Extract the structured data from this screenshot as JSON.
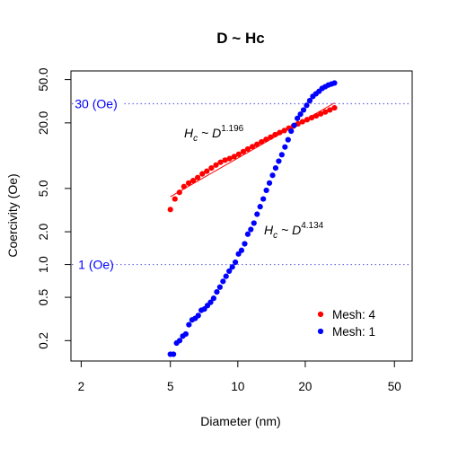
{
  "chart_data": {
    "type": "scatter",
    "title": "D ~ Hc",
    "xlabel": "Diameter (nm)",
    "ylabel": "Coercivity (Oe)",
    "x_scale": "log",
    "y_scale": "log",
    "xlim": [
      1.8,
      60
    ],
    "ylim": [
      0.13,
      60
    ],
    "x_ticks": [
      2,
      5,
      10,
      20,
      50
    ],
    "x_tick_labels": [
      "2",
      "5",
      "10",
      "20",
      "50"
    ],
    "y_ticks": [
      0.2,
      0.5,
      1.0,
      2.0,
      5.0,
      20.0,
      50.0
    ],
    "y_tick_labels": [
      "0.2",
      "0.5",
      "1.0",
      "2.0",
      "5.0",
      "20.0",
      "50.0"
    ],
    "grid": false,
    "legend_position": "bottom-right",
    "reference_lines": [
      {
        "y": 30,
        "label": "30 (Oe)",
        "color": "#6b6bdb",
        "style": "dotted"
      },
      {
        "y": 1,
        "label": "1 (Oe)",
        "color": "#6b6bdb",
        "style": "dotted"
      }
    ],
    "annotations": [
      {
        "base": "H",
        "sub": "c",
        "mid": " ~ D",
        "exp": "1.196"
      },
      {
        "base": "H",
        "sub": "c",
        "mid": " ~ D",
        "exp": "4.134"
      }
    ],
    "series": [
      {
        "name": "Mesh: 4",
        "color": "#ff0000",
        "x": [
          5.0,
          5.24,
          5.49,
          5.75,
          6.03,
          6.32,
          6.62,
          6.94,
          7.27,
          7.62,
          7.99,
          8.37,
          8.77,
          9.19,
          9.63,
          10.09,
          10.58,
          11.08,
          11.62,
          12.17,
          12.76,
          13.37,
          14.01,
          14.68,
          15.38,
          16.12,
          16.89,
          17.7,
          18.55,
          19.44,
          20.38,
          21.35,
          22.38,
          23.45,
          24.57,
          25.75,
          27.0
        ],
        "y": [
          3.2,
          4.0,
          4.6,
          5.2,
          5.6,
          5.9,
          6.3,
          6.8,
          7.2,
          7.7,
          8.2,
          8.7,
          9.1,
          9.4,
          9.8,
          10.3,
          10.9,
          11.5,
          12.1,
          12.7,
          13.4,
          14.1,
          14.8,
          15.6,
          16.3,
          17.0,
          17.9,
          18.7,
          19.6,
          20.5,
          21.4,
          22.3,
          23.2,
          24.2,
          25.2,
          26.3,
          27.5
        ]
      },
      {
        "name": "Mesh: 1",
        "color": "#0000ff",
        "x": [
          5.0,
          5.16,
          5.33,
          5.5,
          5.68,
          5.86,
          6.05,
          6.25,
          6.45,
          6.66,
          6.87,
          7.09,
          7.32,
          7.56,
          7.8,
          8.06,
          8.32,
          8.59,
          8.86,
          9.15,
          9.45,
          9.75,
          10.07,
          10.39,
          10.73,
          11.08,
          11.43,
          11.8,
          12.19,
          12.58,
          12.99,
          13.41,
          13.84,
          14.29,
          14.75,
          15.23,
          15.72,
          16.23,
          16.76,
          17.3,
          17.86,
          18.44,
          19.03,
          19.65,
          20.29,
          20.94,
          21.62,
          22.32,
          23.04,
          23.79,
          24.56,
          25.35,
          26.17,
          27.0
        ],
        "y": [
          0.15,
          0.15,
          0.19,
          0.2,
          0.22,
          0.23,
          0.28,
          0.31,
          0.32,
          0.34,
          0.38,
          0.39,
          0.42,
          0.45,
          0.49,
          0.56,
          0.62,
          0.7,
          0.78,
          0.87,
          0.95,
          1.05,
          1.25,
          1.35,
          1.55,
          1.9,
          2.1,
          2.4,
          2.9,
          3.4,
          4.0,
          4.8,
          5.6,
          6.6,
          7.7,
          8.9,
          10.2,
          12.0,
          14.0,
          16.8,
          19.0,
          22.0,
          24.0,
          26.3,
          29.0,
          32.0,
          35.0,
          37.0,
          39.0,
          41.5,
          43.0,
          44.5,
          45.5,
          46.5
        ]
      }
    ],
    "fit_lines": [
      {
        "series": "Mesh: 4",
        "color": "#ff0000",
        "x": [
          5.0,
          27.0
        ],
        "y": [
          4.2,
          30.5
        ]
      }
    ]
  }
}
